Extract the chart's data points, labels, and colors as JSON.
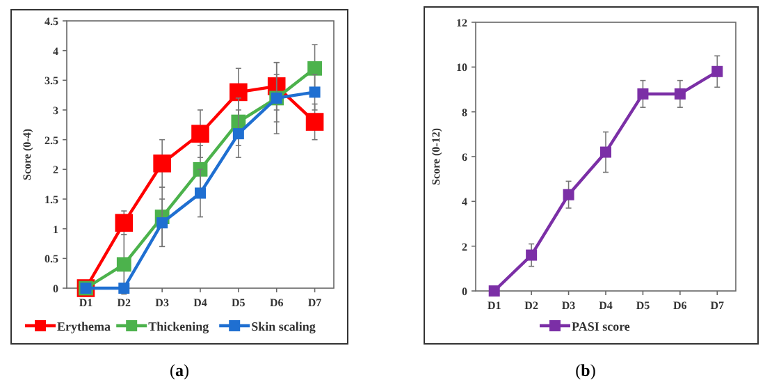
{
  "chart_data": [
    {
      "type": "line",
      "ylabel": "Score (0-4)",
      "categories": [
        "D1",
        "D2",
        "D3",
        "D4",
        "D5",
        "D6",
        "D7"
      ],
      "ylim": [
        0,
        4.5
      ],
      "yticks": [
        0,
        0.5,
        1,
        1.5,
        2,
        2.5,
        3,
        3.5,
        4,
        4.5
      ],
      "marker": "square",
      "line_style": "solid",
      "grid": false,
      "legend": "bottom",
      "annotations": [
        "(a)"
      ],
      "series": [
        {
          "name": "Erythema",
          "color": "#ff0000",
          "values": [
            0,
            1.1,
            2.1,
            2.6,
            3.3,
            3.4,
            2.8
          ],
          "errors": [
            null,
            0.2,
            0.4,
            0.4,
            0.4,
            0.4,
            0.3
          ]
        },
        {
          "name": "Thickening",
          "color": "#4cb24c",
          "values": [
            0,
            0.4,
            1.2,
            2,
            2.8,
            3.2,
            3.7
          ],
          "errors": [
            null,
            0.5,
            0.5,
            0.4,
            0.4,
            0.6,
            0.4
          ]
        },
        {
          "name": "Skin scaling",
          "color": "#1f6fd1",
          "values": [
            0,
            0,
            1.1,
            1.6,
            2.6,
            3.2,
            3.3
          ],
          "errors": [
            null,
            null,
            0.4,
            0.4,
            0.4,
            0.4,
            0.3
          ]
        }
      ]
    },
    {
      "type": "line",
      "ylabel": "Score (0-12)",
      "categories": [
        "D1",
        "D2",
        "D3",
        "D4",
        "D5",
        "D6",
        "D7"
      ],
      "ylim": [
        0,
        12
      ],
      "yticks": [
        0,
        2,
        4,
        6,
        8,
        10,
        12
      ],
      "marker": "square",
      "line_style": "solid",
      "grid": false,
      "legend": "bottom",
      "annotations": [
        "(b)"
      ],
      "series": [
        {
          "name": "PASI score",
          "color": "#7b2fa6",
          "values": [
            0,
            1.6,
            4.3,
            6.2,
            8.8,
            8.8,
            9.8
          ],
          "errors": [
            null,
            0.5,
            0.6,
            0.9,
            0.6,
            0.6,
            0.7
          ]
        }
      ]
    }
  ]
}
